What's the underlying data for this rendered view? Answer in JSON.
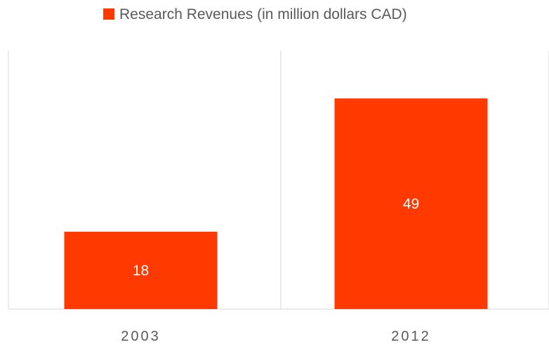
{
  "chart_data": {
    "type": "bar",
    "categories": [
      "2003",
      "2012"
    ],
    "series": [
      {
        "name": "Research Revenues (in million dollars CAD)",
        "values": [
          18,
          49
        ],
        "color": "#ff3a00"
      }
    ],
    "data_labels": [
      "18",
      "49"
    ],
    "ylim": [
      0,
      55
    ],
    "grid": "vertical separators between categories",
    "legend_position": "top-center"
  }
}
